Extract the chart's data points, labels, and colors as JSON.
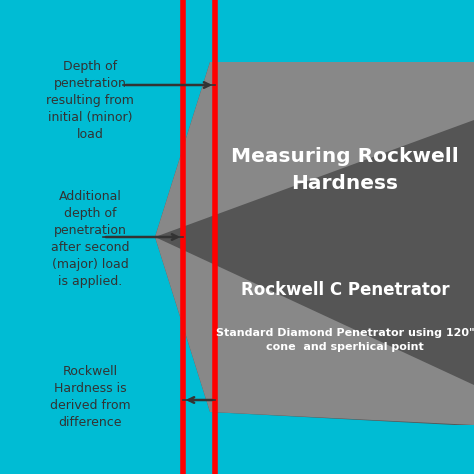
{
  "bg_color": "#00BCD4",
  "dark_gray": "#555555",
  "medium_gray": "#888888",
  "red_line_color": "#FF0000",
  "arrow_color": "#333333",
  "text_color_dark": "#333333",
  "text_color_white": "#FFFFFF",
  "title1": "Measuring Rockwell\nHardness",
  "subtitle1": "Rockwell C Penetrator",
  "subtitle2": "Standard Diamond Penetrator using 120\"\ncone  and sperhical point",
  "label1": "Depth of\npenetration\nresulting from\ninitial (minor)\nload",
  "label2": "Additional\ndepth of\npenetration\nafter second\n(major) load\nis applied.",
  "label3": "Rockwell\nHardness is\nderived from\ndifference",
  "figsize": [
    4.74,
    4.74
  ],
  "dpi": 100
}
